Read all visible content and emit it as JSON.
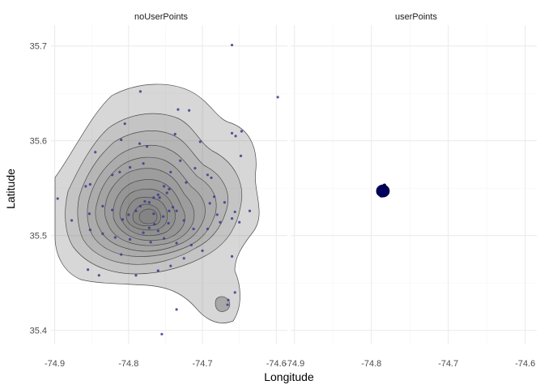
{
  "chart_data": {
    "type": "scatter",
    "xlabel": "Longitude",
    "ylabel": "Latitude",
    "xlim": [
      -74.905,
      -74.585
    ],
    "ylim": [
      35.386,
      35.722
    ],
    "xticks": [
      -74.9,
      -74.8,
      -74.7,
      -74.6
    ],
    "yticks": [
      35.4,
      35.5,
      35.6,
      35.7
    ],
    "x_tick_labels": [
      "-74.9",
      "-74.8",
      "-74.7",
      "-74.6"
    ],
    "y_tick_labels": [
      "35.4",
      "35.5",
      "35.6",
      "35.7"
    ],
    "grid": true,
    "colors": {
      "points": "#3b3b8f",
      "contour_fill": "#6e6e6e",
      "contour_line": "#4d4d4d",
      "cluster": "#00005c"
    },
    "panels": [
      {
        "title": "noUserPoints",
        "points": [
          [
            -74.66,
            35.701
          ],
          [
            -74.598,
            35.646
          ],
          [
            -74.784,
            35.652
          ],
          [
            -74.733,
            35.633
          ],
          [
            -74.718,
            35.632
          ],
          [
            -74.805,
            35.618
          ],
          [
            -74.81,
            35.601
          ],
          [
            -74.785,
            35.597
          ],
          [
            -74.775,
            35.594
          ],
          [
            -74.737,
            35.607
          ],
          [
            -74.703,
            35.599
          ],
          [
            -74.66,
            35.608
          ],
          [
            -74.655,
            35.605
          ],
          [
            -74.647,
            35.61
          ],
          [
            -74.648,
            35.584
          ],
          [
            -74.845,
            35.588
          ],
          [
            -74.858,
            35.552
          ],
          [
            -74.852,
            35.554
          ],
          [
            -74.822,
            35.564
          ],
          [
            -74.812,
            35.567
          ],
          [
            -74.798,
            35.572
          ],
          [
            -74.78,
            35.576
          ],
          [
            -74.743,
            35.567
          ],
          [
            -74.73,
            35.579
          ],
          [
            -74.71,
            35.571
          ],
          [
            -74.693,
            35.564
          ],
          [
            -74.688,
            35.561
          ],
          [
            -74.722,
            35.556
          ],
          [
            -74.745,
            35.549
          ],
          [
            -74.752,
            35.552
          ],
          [
            -74.748,
            35.545
          ],
          [
            -74.76,
            35.543
          ],
          [
            -74.766,
            35.54
          ],
          [
            -74.758,
            35.54
          ],
          [
            -74.772,
            35.535
          ],
          [
            -74.778,
            35.536
          ],
          [
            -74.784,
            35.531
          ],
          [
            -74.79,
            35.526
          ],
          [
            -74.8,
            35.522
          ],
          [
            -74.808,
            35.517
          ],
          [
            -74.822,
            35.527
          ],
          [
            -74.835,
            35.531
          ],
          [
            -74.853,
            35.523
          ],
          [
            -74.877,
            35.516
          ],
          [
            -74.896,
            35.539
          ],
          [
            -74.745,
            35.526
          ],
          [
            -74.74,
            35.53
          ],
          [
            -74.735,
            35.526
          ],
          [
            -74.753,
            35.52
          ],
          [
            -74.765,
            35.512
          ],
          [
            -74.766,
            35.523
          ],
          [
            -74.772,
            35.508
          ],
          [
            -74.78,
            35.503
          ],
          [
            -74.798,
            35.496
          ],
          [
            -74.818,
            35.498
          ],
          [
            -74.835,
            35.502
          ],
          [
            -74.852,
            35.506
          ],
          [
            -74.76,
            35.505
          ],
          [
            -74.746,
            35.513
          ],
          [
            -74.725,
            35.516
          ],
          [
            -74.712,
            35.507
          ],
          [
            -74.693,
            35.507
          ],
          [
            -74.68,
            35.522
          ],
          [
            -74.676,
            35.514
          ],
          [
            -74.66,
            35.518
          ],
          [
            -74.65,
            35.514
          ],
          [
            -74.636,
            35.526
          ],
          [
            -74.69,
            35.534
          ],
          [
            -74.67,
            35.535
          ],
          [
            -74.684,
            35.541
          ],
          [
            -74.656,
            35.525
          ],
          [
            -74.77,
            35.493
          ],
          [
            -74.752,
            35.497
          ],
          [
            -74.735,
            35.492
          ],
          [
            -74.715,
            35.49
          ],
          [
            -74.7,
            35.484
          ],
          [
            -74.725,
            35.476
          ],
          [
            -74.743,
            35.468
          ],
          [
            -74.76,
            35.463
          ],
          [
            -74.79,
            35.458
          ],
          [
            -74.81,
            35.48
          ],
          [
            -74.855,
            35.464
          ],
          [
            -74.84,
            35.458
          ],
          [
            -74.66,
            35.478
          ],
          [
            -74.656,
            35.44
          ],
          [
            -74.665,
            35.432
          ],
          [
            -74.666,
            35.427
          ],
          [
            -74.735,
            35.422
          ],
          [
            -74.755,
            35.396
          ]
        ]
      },
      {
        "title": "userPoints",
        "points": [
          [
            -74.786,
            35.548
          ],
          [
            -74.784,
            35.546
          ],
          [
            -74.788,
            35.549
          ],
          [
            -74.782,
            35.545
          ],
          [
            -74.785,
            35.551
          ],
          [
            -74.789,
            35.544
          ],
          [
            -74.781,
            35.549
          ],
          [
            -74.787,
            35.542
          ],
          [
            -74.783,
            35.553
          ],
          [
            -74.79,
            35.55
          ],
          [
            -74.78,
            35.547
          ],
          [
            -74.786,
            35.545
          ],
          [
            -74.784,
            35.55
          ],
          [
            -74.788,
            35.546
          ],
          [
            -74.782,
            35.551
          ],
          [
            -74.785,
            35.543
          ]
        ]
      }
    ]
  }
}
